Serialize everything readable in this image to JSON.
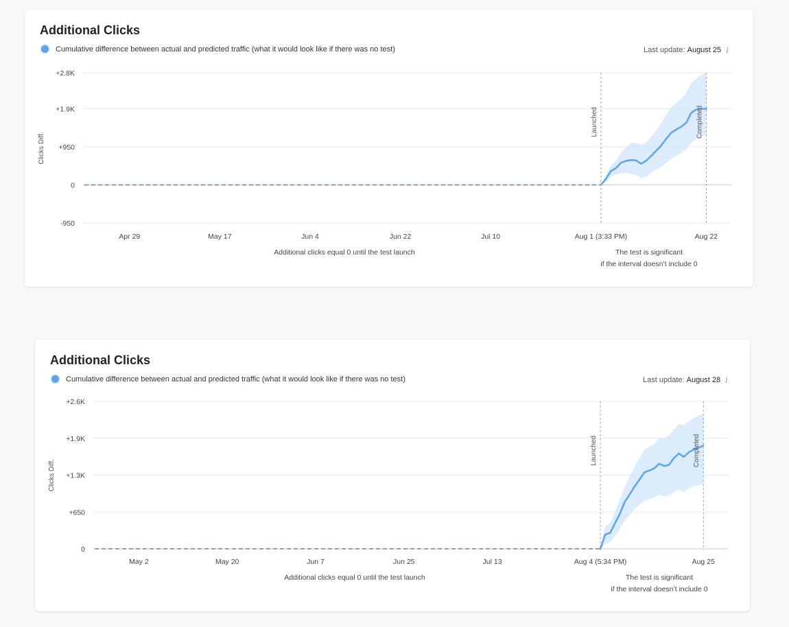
{
  "colors": {
    "line": "#5ea3e6",
    "band": "#d6e9fb",
    "grid": "#e6e8eb",
    "zero": "#c9cdd2",
    "baseline": "#8e9cab",
    "marker": "#9aa0a6"
  },
  "cards": [
    {
      "title": "Additional Clicks",
      "legend": "Cumulative difference between actual and predicted traffic (what it would look like if there was no test)",
      "last_update_label": "Last update:",
      "last_update_value": "August 25",
      "info_icon": "info-icon",
      "zero_note": "Additional clicks equal 0 until the test launch",
      "sig_note_1": "The test is significant",
      "sig_note_2": "if the interval doesn’t include 0",
      "chart_data": {
        "type": "line",
        "title": "Additional Clicks",
        "ylabel": "Clicks Diff.",
        "ylim": [
          -950,
          2800
        ],
        "yticks": [
          {
            "value": 2800,
            "label": "+2.8K"
          },
          {
            "value": 1900,
            "label": "+1.9K"
          },
          {
            "value": 950,
            "label": "+950"
          },
          {
            "value": 0,
            "label": "0"
          },
          {
            "value": -950,
            "label": "-950"
          }
        ],
        "xlim": [
          "2025-04-20",
          "2025-08-27"
        ],
        "xticks": [
          {
            "date": "2025-04-29",
            "label": "Apr 29"
          },
          {
            "date": "2025-05-17",
            "label": "May 17"
          },
          {
            "date": "2025-06-04",
            "label": "Jun 4"
          },
          {
            "date": "2025-06-22",
            "label": "Jun 22"
          },
          {
            "date": "2025-07-10",
            "label": "Jul 10"
          },
          {
            "date": "2025-08-01",
            "label": "Aug 1 (3:33 PM)"
          },
          {
            "date": "2025-08-22",
            "label": "Aug 22"
          }
        ],
        "markers": [
          {
            "date": "2025-08-01",
            "label": "Launched"
          },
          {
            "date": "2025-08-22",
            "label": "Completed"
          }
        ],
        "pre_launch": {
          "from": "2025-04-20",
          "to": "2025-08-01",
          "value": 0
        },
        "series": [
          {
            "x": [
              "2025-08-01",
              "2025-08-02",
              "2025-08-03",
              "2025-08-04",
              "2025-08-05",
              "2025-08-06",
              "2025-08-07",
              "2025-08-08",
              "2025-08-09",
              "2025-08-10",
              "2025-08-11",
              "2025-08-12",
              "2025-08-13",
              "2025-08-14",
              "2025-08-15",
              "2025-08-16",
              "2025-08-17",
              "2025-08-18",
              "2025-08-19",
              "2025-08-20",
              "2025-08-21",
              "2025-08-22"
            ],
            "y": [
              0,
              150,
              350,
              420,
              550,
              600,
              620,
              610,
              530,
              600,
              720,
              850,
              980,
              1150,
              1300,
              1380,
              1450,
              1550,
              1800,
              1880,
              1900,
              1900
            ],
            "lower": [
              0,
              80,
              200,
              260,
              280,
              300,
              280,
              250,
              170,
              200,
              300,
              380,
              450,
              550,
              650,
              720,
              800,
              880,
              1050,
              1150,
              1200,
              1250
            ],
            "upper": [
              0,
              250,
              500,
              600,
              800,
              950,
              1050,
              1050,
              1000,
              1050,
              1200,
              1350,
              1550,
              1750,
              1950,
              2050,
              2150,
              2300,
              2550,
              2650,
              2750,
              2800
            ]
          }
        ]
      }
    },
    {
      "title": "Additional Clicks",
      "legend": "Cumulative difference between actual and predicted traffic (what it would look like if there was no test)",
      "last_update_label": "Last update:",
      "last_update_value": "August 28",
      "info_icon": "info-icon",
      "zero_note": "Additional clicks equal 0 until the test launch",
      "sig_note_1": "The test is significant",
      "sig_note_2": "if the interval doesn’t include 0",
      "chart_data": {
        "type": "line",
        "title": "Additional Clicks",
        "ylabel": "Clicks Diff.",
        "ylim": [
          0,
          2600
        ],
        "yticks": [
          {
            "value": 2600,
            "label": "+2.6K"
          },
          {
            "value": 1950,
            "label": "+1.9K"
          },
          {
            "value": 1300,
            "label": "+1.3K"
          },
          {
            "value": 650,
            "label": "+650"
          },
          {
            "value": 0,
            "label": "0"
          }
        ],
        "xlim": [
          "2025-04-23",
          "2025-08-30"
        ],
        "xticks": [
          {
            "date": "2025-05-02",
            "label": "May 2"
          },
          {
            "date": "2025-05-20",
            "label": "May 20"
          },
          {
            "date": "2025-06-07",
            "label": "Jun 7"
          },
          {
            "date": "2025-06-25",
            "label": "Jun 25"
          },
          {
            "date": "2025-07-13",
            "label": "Jul 13"
          },
          {
            "date": "2025-08-04",
            "label": "Aug 4 (5:34 PM)"
          },
          {
            "date": "2025-08-25",
            "label": "Aug 25"
          }
        ],
        "markers": [
          {
            "date": "2025-08-04",
            "label": "Launched"
          },
          {
            "date": "2025-08-25",
            "label": "Completed"
          }
        ],
        "pre_launch": {
          "from": "2025-04-23",
          "to": "2025-08-04",
          "value": 0
        },
        "series": [
          {
            "x": [
              "2025-08-04",
              "2025-08-05",
              "2025-08-06",
              "2025-08-07",
              "2025-08-08",
              "2025-08-09",
              "2025-08-10",
              "2025-08-11",
              "2025-08-12",
              "2025-08-13",
              "2025-08-14",
              "2025-08-15",
              "2025-08-16",
              "2025-08-17",
              "2025-08-18",
              "2025-08-19",
              "2025-08-20",
              "2025-08-21",
              "2025-08-22",
              "2025-08-23",
              "2025-08-24",
              "2025-08-25"
            ],
            "y": [
              0,
              250,
              280,
              450,
              620,
              830,
              960,
              1100,
              1220,
              1350,
              1380,
              1420,
              1500,
              1460,
              1480,
              1600,
              1680,
              1620,
              1700,
              1750,
              1780,
              1820
            ],
            "lower": [
              0,
              80,
              120,
              220,
              350,
              500,
              600,
              700,
              780,
              850,
              880,
              900,
              950,
              920,
              940,
              1000,
              1050,
              1000,
              1060,
              1100,
              1120,
              1150
            ],
            "upper": [
              0,
              400,
              450,
              650,
              880,
              1100,
              1280,
              1450,
              1600,
              1750,
              1800,
              1850,
              1950,
              1950,
              2000,
              2100,
              2200,
              2180,
              2250,
              2300,
              2350,
              2380
            ]
          }
        ]
      }
    }
  ]
}
